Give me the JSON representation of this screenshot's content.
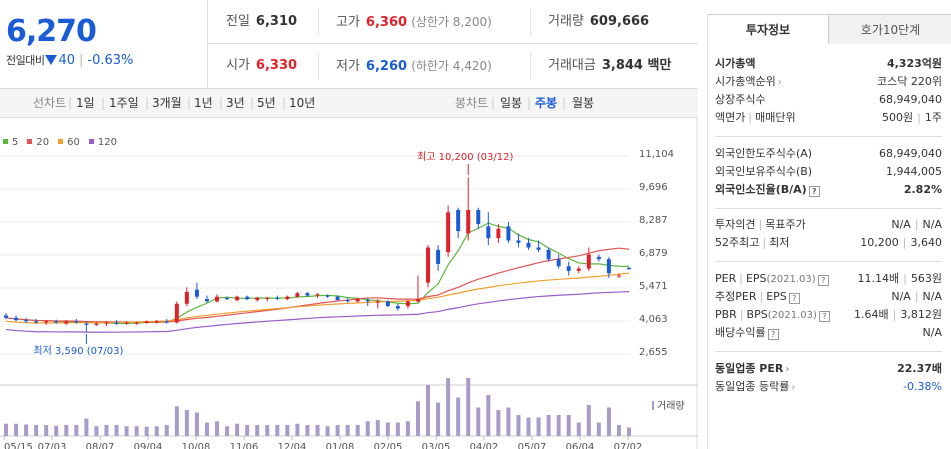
{
  "quote": {
    "price": "6,270",
    "change_label": "전일대비",
    "change": "40",
    "change_pct": "-0.63%",
    "prev_close": {
      "label": "전일",
      "value": "6,310"
    },
    "high": {
      "label": "고가",
      "value": "6,360",
      "note": "(상한가 8,200)"
    },
    "volume": {
      "label": "거래량",
      "value": "609,666"
    },
    "open": {
      "label": "시가",
      "value": "6,330"
    },
    "low": {
      "label": "저가",
      "value": "6,260",
      "note": "(하한가 4,420)"
    },
    "amount": {
      "label": "거래대금",
      "value": "3,844 백만"
    }
  },
  "toolbar": {
    "line_chart": "선차트",
    "line_periods": [
      "1일",
      "1주일",
      "3개월",
      "1년",
      "3년",
      "5년",
      "10년"
    ],
    "candle_chart": "봉차트",
    "candle_periods": [
      "일봉",
      "주봉",
      "월봉"
    ],
    "active": "주봉"
  },
  "chart_data": {
    "type": "candlestick",
    "moving_averages": [
      {
        "name": "5",
        "color": "#5ab83c"
      },
      {
        "name": "20",
        "color": "#e35555"
      },
      {
        "name": "60",
        "color": "#f0a030"
      },
      {
        "name": "120",
        "color": "#9a5cc8"
      }
    ],
    "y_ticks": [
      "11,104",
      "9,696",
      "8,287",
      "6,879",
      "5,471",
      "4,063",
      "2,655"
    ],
    "x_labels": [
      "05/15",
      "07/03",
      "08/07",
      "09/04",
      "10/08",
      "11/06",
      "12/04",
      "01/08",
      "02/05",
      "03/05",
      "04/02",
      "05/07",
      "06/04",
      "07/02"
    ],
    "annotations": {
      "high": "최고 10,200 (03/12)",
      "low": "최저 3,590 (07/03)"
    },
    "volume_label": "거래량",
    "candles": [
      [
        4300,
        4400,
        4150,
        4200
      ],
      [
        4200,
        4300,
        4050,
        4100
      ],
      [
        4100,
        4200,
        3980,
        4050
      ],
      [
        4050,
        4150,
        3950,
        4000
      ],
      [
        4000,
        4100,
        3900,
        4050
      ],
      [
        4050,
        4120,
        3950,
        4000
      ],
      [
        3950,
        4100,
        3900,
        4050
      ],
      [
        4050,
        4150,
        3950,
        4000
      ],
      [
        3950,
        4050,
        3590,
        3900
      ],
      [
        3900,
        4000,
        3850,
        3950
      ],
      [
        3950,
        4050,
        3850,
        4000
      ],
      [
        4000,
        4100,
        3900,
        3950
      ],
      [
        3950,
        4050,
        3900,
        4000
      ],
      [
        3950,
        4050,
        3900,
        3980
      ],
      [
        3980,
        4080,
        3950,
        4050
      ],
      [
        4000,
        4100,
        3950,
        4060
      ],
      [
        4050,
        4150,
        3950,
        4000
      ],
      [
        4000,
        4900,
        3950,
        4800
      ],
      [
        4800,
        5500,
        4700,
        5300
      ],
      [
        5400,
        5700,
        5000,
        5100
      ],
      [
        5000,
        5150,
        4850,
        4900
      ],
      [
        4900,
        5200,
        4850,
        5100
      ],
      [
        5050,
        5100,
        4950,
        5000
      ],
      [
        4950,
        5150,
        4900,
        5100
      ],
      [
        5100,
        5150,
        4950,
        5000
      ],
      [
        4950,
        5100,
        4900,
        5050
      ],
      [
        5000,
        5100,
        4900,
        5050
      ],
      [
        5050,
        5150,
        4950,
        5000
      ],
      [
        5000,
        5150,
        4950,
        5100
      ],
      [
        5100,
        5300,
        5050,
        5250
      ],
      [
        5250,
        5300,
        5100,
        5150
      ],
      [
        5150,
        5250,
        5050,
        5200
      ],
      [
        5150,
        5200,
        5050,
        5100
      ],
      [
        5100,
        5150,
        4950,
        4950
      ],
      [
        4950,
        5050,
        4850,
        4900
      ],
      [
        4900,
        5050,
        4850,
        5000
      ],
      [
        4950,
        5050,
        4700,
        4900
      ],
      [
        4850,
        5000,
        4600,
        4900
      ],
      [
        4900,
        4950,
        4650,
        4700
      ],
      [
        4700,
        4800,
        4500,
        4600
      ],
      [
        4700,
        4950,
        4600,
        4900
      ],
      [
        4900,
        6000,
        4850,
        5000
      ],
      [
        5700,
        7300,
        5500,
        7200
      ],
      [
        7100,
        7300,
        6200,
        6500
      ],
      [
        7000,
        9000,
        6800,
        8700
      ],
      [
        8800,
        8900,
        7600,
        7900
      ],
      [
        7800,
        10200,
        7500,
        8800
      ],
      [
        8800,
        8900,
        8000,
        8200
      ],
      [
        8100,
        8700,
        7300,
        7600
      ],
      [
        7600,
        8200,
        7400,
        8000
      ],
      [
        8100,
        8300,
        7400,
        7500
      ],
      [
        7500,
        7800,
        7200,
        7400
      ],
      [
        7400,
        7600,
        7100,
        7200
      ],
      [
        7200,
        7500,
        7000,
        7100
      ],
      [
        7100,
        7200,
        6600,
        6700
      ],
      [
        6700,
        6900,
        6300,
        6400
      ],
      [
        6400,
        6600,
        6000,
        6200
      ],
      [
        6200,
        6400,
        6100,
        6300
      ],
      [
        6300,
        7200,
        6200,
        6900
      ],
      [
        6800,
        6900,
        6600,
        6700
      ],
      [
        6700,
        6800,
        5900,
        6100
      ],
      [
        6000,
        6100,
        5900,
        6000
      ],
      [
        6330,
        6360,
        6260,
        6270
      ]
    ]
  },
  "info": {
    "tabs": [
      "투자정보",
      "호가10단계"
    ],
    "rows": [
      {
        "label": "시가총액",
        "value": "4,323억원",
        "bold": true
      },
      {
        "label": "시가총액순위",
        "value": "코스닥 220위"
      },
      {
        "label": "상장주식수",
        "value": "68,949,040"
      },
      {
        "label": "액면가",
        "label2": "매매단위",
        "value": "500원",
        "value2": "1주"
      },
      {
        "label": "외국인한도주식수(A)",
        "value": "68,949,040"
      },
      {
        "label": "외국인보유주식수(B)",
        "value": "1,944,005"
      },
      {
        "label": "외국인소진율(B/A)",
        "value": "2.82%",
        "bold": true
      },
      {
        "label": "투자의견",
        "label2": "목표주가",
        "value": "N/A",
        "value2": "N/A"
      },
      {
        "label": "52주최고",
        "label2": "최저",
        "value": "10,200",
        "value2": "3,640"
      },
      {
        "label": "PER",
        "label2": "EPS",
        "sub2": "(2021.03)",
        "value": "11.14배",
        "value2": "563원"
      },
      {
        "label": "추정PER",
        "label2": "EPS",
        "value": "N/A",
        "value2": "N/A"
      },
      {
        "label": "PBR",
        "label2": "BPS",
        "sub2": "(2021.03)",
        "value": "1.64배",
        "value2": "3,812원"
      },
      {
        "label": "배당수익률",
        "value": "N/A"
      },
      {
        "label": "동일업종 PER",
        "value": "22.37배",
        "bold": true
      },
      {
        "label": "동일업종 등락률",
        "value": "-0.38%",
        "blue": true
      }
    ]
  }
}
